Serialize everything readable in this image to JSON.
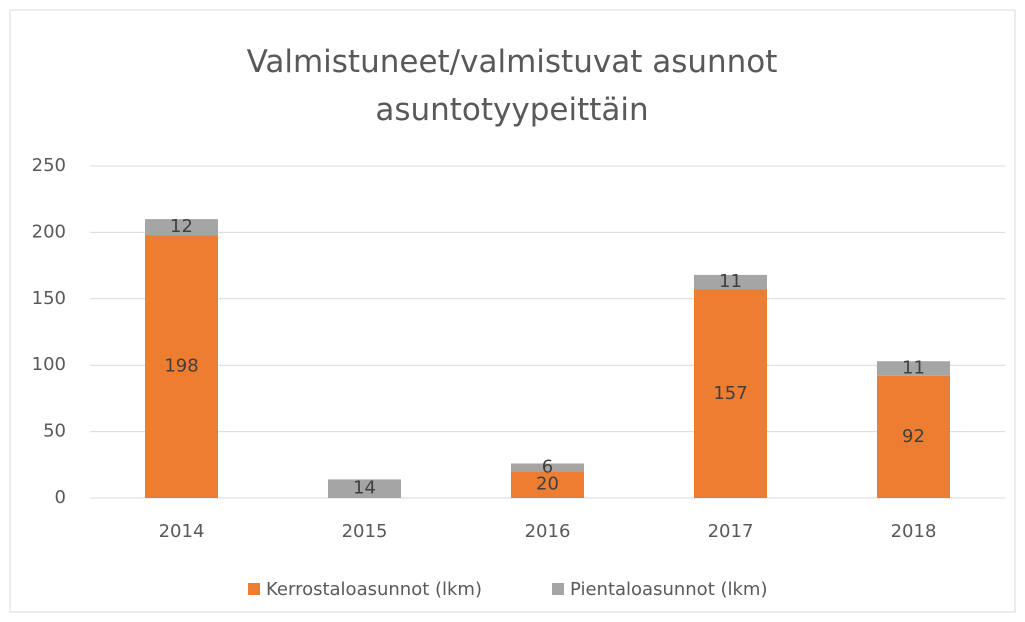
{
  "chart_data": {
    "type": "stacked_bar",
    "title": "Valmistuneet/valmistuvat asunnot asuntotyypeittäin",
    "categories": [
      "2014",
      "2015",
      "2016",
      "2017",
      "2018"
    ],
    "series": [
      {
        "name": "Kerrostaloasunnot (lkm)",
        "color": "#ED7D31",
        "values": [
          198,
          0,
          20,
          157,
          92
        ]
      },
      {
        "name": "Pientaloasunnot (lkm)",
        "color": "#A5A5A5",
        "values": [
          12,
          14,
          6,
          11,
          11
        ]
      }
    ],
    "ylim": [
      0,
      250
    ],
    "yticks": [
      0,
      50,
      100,
      150,
      200,
      250
    ],
    "grid": true,
    "legend": "bottom"
  }
}
